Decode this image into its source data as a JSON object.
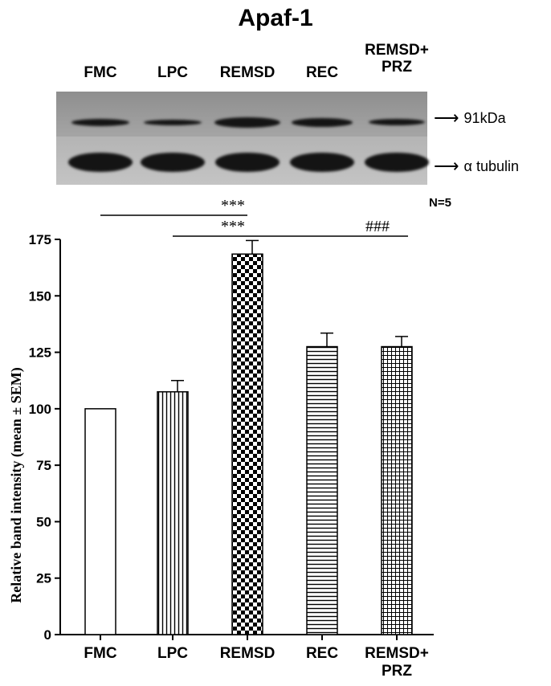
{
  "title": "Apaf-1",
  "blot": {
    "lanes": [
      "FMC",
      "LPC",
      "REMSD",
      "REC",
      "REMSD+\nPRZ"
    ],
    "markers": [
      "91kDa",
      "α tubulin"
    ]
  },
  "n_label": "N=5",
  "significance": [
    {
      "from": "FMC",
      "to": "REMSD",
      "label": "***"
    },
    {
      "from": "LPC",
      "to": "REMSD",
      "label": "***"
    },
    {
      "from": "REMSD",
      "to": "REMSD+PRZ",
      "label": "###"
    }
  ],
  "chart_data": {
    "type": "bar",
    "categories": [
      "FMC",
      "LPC",
      "REMSD",
      "REC",
      "REMSD+\nPRZ"
    ],
    "values": [
      100,
      107.5,
      168.5,
      127.5,
      127.5
    ],
    "errors": [
      0,
      5,
      6,
      6,
      4.5
    ],
    "patterns": [
      "blank",
      "vertical",
      "checker",
      "horizontal",
      "grid"
    ],
    "ylabel": "Relative band intensity (mean ± SEM)",
    "ylim": [
      0,
      175
    ],
    "yticks": [
      0,
      25,
      50,
      75,
      100,
      125,
      150,
      175
    ]
  },
  "colors": {
    "ink": "#000000",
    "background": "#ffffff"
  }
}
